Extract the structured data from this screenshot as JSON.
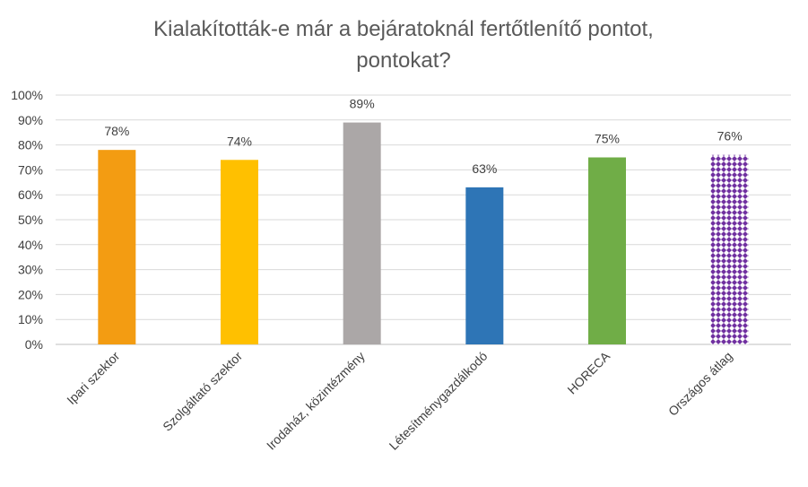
{
  "chart_data": {
    "type": "bar",
    "title_lines": [
      "Kialakították-e már a bejáratoknál fertőtlenítő pontot,",
      "pontokat?"
    ],
    "categories": [
      "Ipari szektor",
      "Szolgáltató szektor",
      "Irodaház, közintézmény",
      "Létesítménygazdálkodó",
      "HORECA",
      "Országos átlag"
    ],
    "values": [
      78,
      74,
      89,
      63,
      75,
      76
    ],
    "data_labels": [
      "78%",
      "74%",
      "89%",
      "63%",
      "75%",
      "76%"
    ],
    "colors": [
      "#F39C12",
      "#FFC000",
      "#ABA7A7",
      "#2E75B6",
      "#70AD47",
      "#7030A0"
    ],
    "patterned": [
      false,
      false,
      false,
      false,
      false,
      true
    ],
    "ylim": [
      0,
      100
    ],
    "y_ticks": [
      "0%",
      "10%",
      "20%",
      "30%",
      "40%",
      "50%",
      "60%",
      "70%",
      "80%",
      "90%",
      "100%"
    ],
    "gridlines": true,
    "legend": "none"
  }
}
